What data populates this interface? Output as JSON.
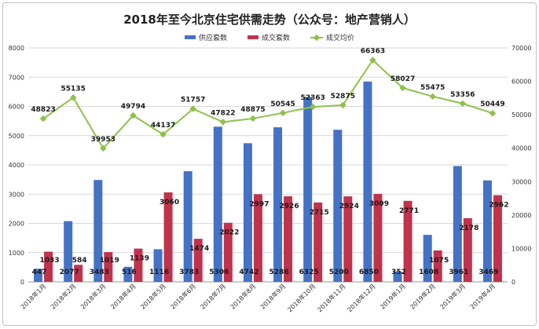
{
  "chart_data": {
    "type": "bar",
    "title": "2018年至今北京住宅供需走势（公众号：地产营销人）",
    "categories": [
      "2018年1月",
      "2018年2月",
      "2018年3月",
      "2018年4月",
      "2018年5月",
      "2018年6月",
      "2018年7月",
      "2018年8月",
      "2018年9月",
      "2018年10月",
      "2018年11月",
      "2018年12月",
      "2019年1月",
      "2019年2月",
      "2019年3月",
      "2019年4月"
    ],
    "series": [
      {
        "name": "供应套数",
        "type": "bar",
        "axis": "left",
        "color": "#4472c4",
        "values": [
          447,
          2077,
          3483,
          516,
          1116,
          3783,
          5306,
          4742,
          5286,
          6325,
          5200,
          6850,
          352,
          1608,
          3961,
          3469
        ]
      },
      {
        "name": "成交套数",
        "type": "bar",
        "axis": "left",
        "color": "#c0334d",
        "values": [
          1033,
          584,
          1019,
          1139,
          3060,
          1474,
          2022,
          2997,
          2926,
          2715,
          2924,
          3009,
          2771,
          1075,
          2178,
          2962
        ]
      },
      {
        "name": "成交均价",
        "type": "line",
        "axis": "right",
        "color": "#8ec14b",
        "values": [
          48823,
          55135,
          39953,
          49794,
          44137,
          51757,
          47822,
          48875,
          50545,
          52363,
          52875,
          66363,
          58027,
          55475,
          53356,
          50449
        ]
      }
    ],
    "ylim_left": [
      0,
      8000
    ],
    "ylim_right": [
      0,
      70000
    ],
    "yticks_left": [
      "0",
      "1000",
      "2000",
      "3000",
      "4000",
      "5000",
      "6000",
      "7000",
      "8000"
    ],
    "yticks_right": [
      "0",
      "10000",
      "20000",
      "30000",
      "40000",
      "50000",
      "60000",
      "70000"
    ],
    "grid": true,
    "legend_position": "top"
  }
}
